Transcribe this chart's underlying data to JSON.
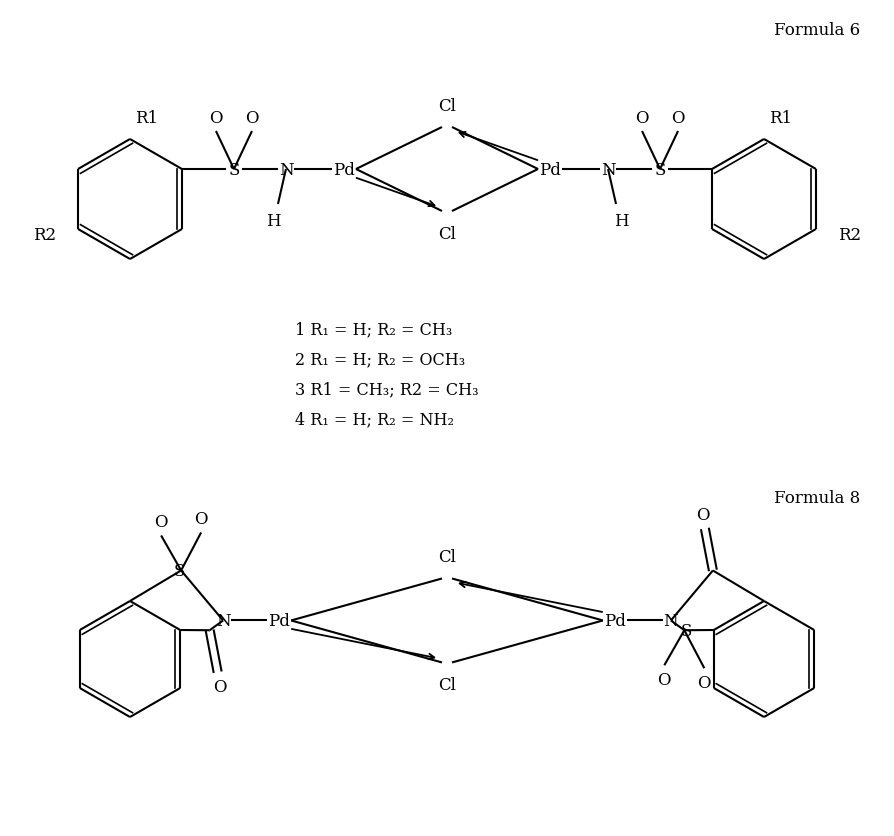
{
  "title1": "Formula 6",
  "title2": "Formula 8",
  "bg_color": "#ffffff",
  "line_color": "#000000",
  "font_size": 12,
  "font_size_title": 12,
  "annotations_formula6": [
    "1 R₁ = H; R₂ = CH₃",
    "2 R₁ = H; R₂ = OCH₃",
    "3 R1 = CH₃; R2 = CH₃",
    "4 R₁ = H; R₂ = NH₂"
  ]
}
